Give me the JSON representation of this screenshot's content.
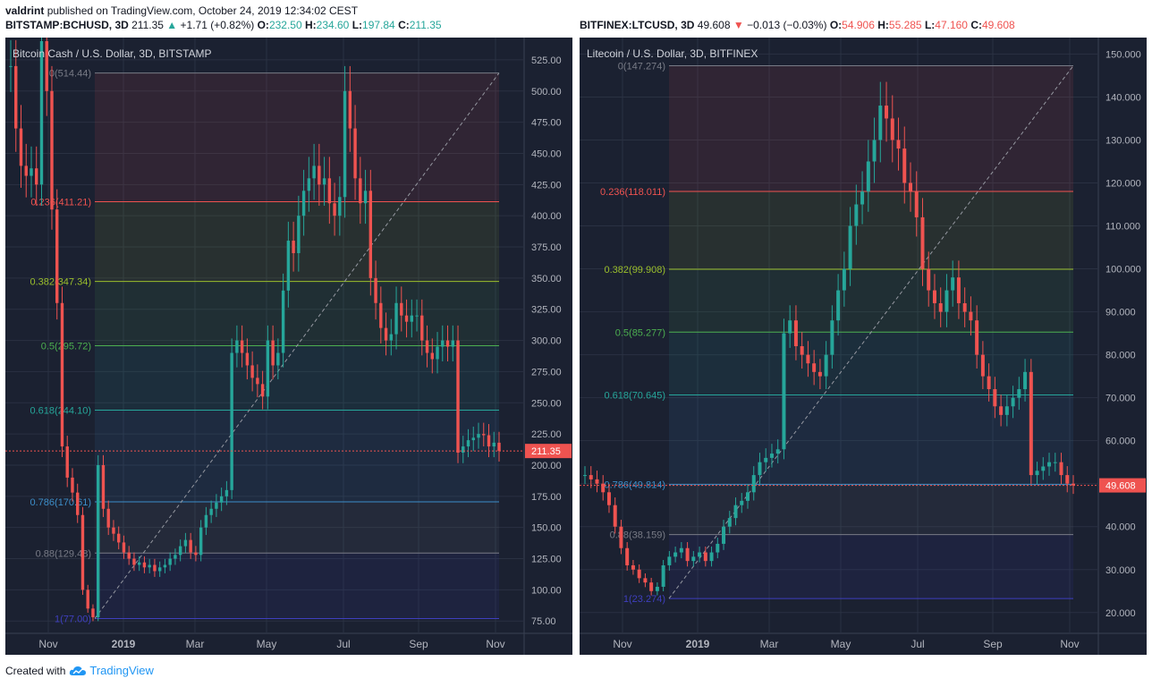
{
  "header": {
    "author": "valdrint",
    "published": "published on TradingView.com, October 24, 2019 12:34:02 CEST"
  },
  "tickers": [
    {
      "symbol": "BITSTAMP:BCHUSD, 3D",
      "price": "211.35",
      "dir": "up",
      "change": "+1.71 (+0.82%)",
      "o": "232.50",
      "h": "234.60",
      "l": "197.84",
      "c": "211.35"
    },
    {
      "symbol": "BITFINEX:LTCUSD, 3D",
      "price": "49.608",
      "dir": "down",
      "change": "−0.013 (−0.03%)",
      "o": "54.906",
      "h": "55.285",
      "l": "47.160",
      "c": "49.608"
    }
  ],
  "footer": {
    "created_with": "Created with",
    "brand": "TradingView"
  },
  "colors": {
    "bg": "#1b2131",
    "grid": "#2a3142",
    "up": "#26a69a",
    "down": "#ef5350",
    "axis_text": "#b2b5be",
    "price_tag": "#ef5350"
  },
  "chart_data": [
    {
      "type": "candlestick",
      "title": "Bitcoin Cash / U.S. Dollar, 3D, BITSTAMP",
      "ylim": [
        68,
        540
      ],
      "y_ticks": [
        75,
        100,
        125,
        150,
        175,
        200,
        225,
        250,
        275,
        300,
        325,
        350,
        375,
        400,
        425,
        450,
        475,
        500,
        525
      ],
      "y_tick_labels": [
        "75.00",
        "100.00",
        "125.00",
        "150.00",
        "175.00",
        "200.00",
        "225.00",
        "250.00",
        "275.00",
        "300.00",
        "325.00",
        "350.00",
        "375.00",
        "400.00",
        "425.00",
        "450.00",
        "475.00",
        "500.00",
        "525.00"
      ],
      "x_labels": [
        "Nov",
        "2019",
        "Mar",
        "May",
        "Jul",
        "Sep",
        "Nov"
      ],
      "last_price": 211.35,
      "last_price_label": "211.35",
      "fib": [
        {
          "label": "0(514.44)",
          "value": 514.44,
          "color": "#787b86"
        },
        {
          "label": "0.236(411.21)",
          "value": 411.21,
          "color": "#ef5350"
        },
        {
          "label": "0.382(347.34)",
          "value": 347.34,
          "color": "#9bbf2c"
        },
        {
          "label": "0.5(295.72)",
          "value": 295.72,
          "color": "#4caf50"
        },
        {
          "label": "0.618(244.10)",
          "value": 244.1,
          "color": "#26a69a"
        },
        {
          "label": "0.786(170.61)",
          "value": 170.61,
          "color": "#3d8ec9"
        },
        {
          "label": "0.88(129.48)",
          "value": 129.48,
          "color": "#787b86"
        },
        {
          "label": "1(77.00)",
          "value": 77.0,
          "color": "#3f3fbf"
        }
      ],
      "closes": [
        520,
        470,
        440,
        432,
        438,
        425,
        540,
        500,
        405,
        330,
        215,
        190,
        178,
        160,
        100,
        85,
        78,
        200,
        165,
        150,
        145,
        138,
        130,
        125,
        120,
        122,
        118,
        120,
        115,
        118,
        120,
        125,
        128,
        135,
        140,
        130,
        128,
        150,
        160,
        165,
        170,
        175,
        180,
        290,
        300,
        290,
        280,
        270,
        265,
        255,
        300,
        280,
        290,
        340,
        380,
        370,
        400,
        420,
        430,
        440,
        425,
        430,
        410,
        400,
        415,
        500,
        470,
        430,
        410,
        420,
        350,
        330,
        310,
        300,
        305,
        330,
        320,
        315,
        320,
        320,
        300,
        290,
        285,
        295,
        300,
        295,
        300,
        210,
        215,
        220,
        222,
        225,
        224,
        215,
        218,
        211.35
      ]
    },
    {
      "type": "candlestick",
      "title": "Litecoin / U.S. Dollar, 3D, BITFINEX",
      "ylim": [
        16,
        153
      ],
      "y_ticks": [
        20,
        30,
        40,
        50,
        60,
        70,
        80,
        90,
        100,
        110,
        120,
        130,
        140,
        150
      ],
      "y_tick_labels": [
        "20.000",
        "30.000",
        "40.000",
        "50.000",
        "60.000",
        "70.000",
        "80.000",
        "90.000",
        "100.000",
        "110.000",
        "120.000",
        "130.000",
        "140.000",
        "150.000"
      ],
      "x_labels": [
        "Nov",
        "2019",
        "Mar",
        "May",
        "Jul",
        "Sep",
        "Nov"
      ],
      "last_price": 49.608,
      "last_price_label": "49.608",
      "fib": [
        {
          "label": "0(147.274)",
          "value": 147.274,
          "color": "#787b86"
        },
        {
          "label": "0.236(118.011)",
          "value": 118.011,
          "color": "#ef5350"
        },
        {
          "label": "0.382(99.908)",
          "value": 99.908,
          "color": "#9bbf2c"
        },
        {
          "label": "0.5(85.277)",
          "value": 85.277,
          "color": "#4caf50"
        },
        {
          "label": "0.618(70.645)",
          "value": 70.645,
          "color": "#26a69a"
        },
        {
          "label": "0.786(49.814)",
          "value": 49.814,
          "color": "#3d8ec9"
        },
        {
          "label": "0.88(38.159)",
          "value": 38.159,
          "color": "#787b86"
        },
        {
          "label": "1(23.274)",
          "value": 23.274,
          "color": "#3f3fbf"
        }
      ],
      "closes": [
        52,
        51,
        50,
        48,
        45,
        40,
        35,
        31,
        30,
        28,
        27,
        25,
        26,
        31,
        33,
        34,
        35,
        32,
        33,
        34,
        32,
        34,
        36,
        40,
        42,
        45,
        46,
        48,
        52,
        55,
        56,
        57,
        58,
        85,
        88,
        82,
        80,
        78,
        76,
        75,
        80,
        88,
        95,
        100,
        110,
        115,
        118,
        125,
        130,
        138,
        135,
        130,
        128,
        120,
        118,
        112,
        100,
        95,
        92,
        90,
        95,
        98,
        92,
        90,
        88,
        80,
        75,
        72,
        68,
        66,
        68,
        70,
        72,
        76,
        52,
        53,
        54,
        55,
        55,
        52,
        50,
        49.608
      ]
    }
  ]
}
